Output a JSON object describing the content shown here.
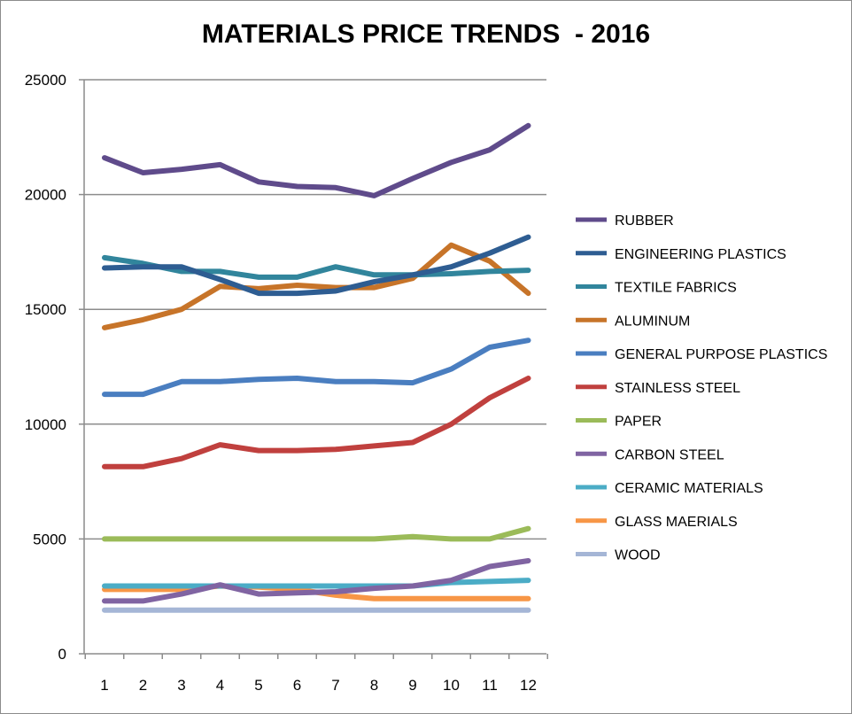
{
  "chart_data": {
    "type": "line",
    "title": "MATERIALS PRICE TRENDS  - 2016",
    "xlabel": "",
    "ylabel": "",
    "x": [
      1,
      2,
      3,
      4,
      5,
      6,
      7,
      8,
      9,
      10,
      11,
      12
    ],
    "x_tick_labels": [
      "1",
      "2",
      "3",
      "4",
      "5",
      "6",
      "7",
      "8",
      "9",
      "10",
      "11",
      "12"
    ],
    "y_tick_labels": [
      "0",
      "5000",
      "10000",
      "15000",
      "20000",
      "25000"
    ],
    "ylim": [
      0,
      25000
    ],
    "grid": "horizontal",
    "legend_position": "right",
    "series": [
      {
        "name": "RUBBER",
        "color": "#5f4b8b",
        "values": [
          21600,
          20950,
          21100,
          21300,
          20550,
          20350,
          20300,
          19950,
          20700,
          21400,
          21950,
          23000
        ]
      },
      {
        "name": "ENGINEERING PLASTICS",
        "color": "#2e5d92",
        "values": [
          16800,
          16850,
          16850,
          16300,
          15700,
          15700,
          15800,
          16200,
          16500,
          16850,
          17450,
          18150
        ]
      },
      {
        "name": "TEXTILE FABRICS",
        "color": "#31859c",
        "values": [
          17250,
          17000,
          16650,
          16650,
          16400,
          16400,
          16850,
          16500,
          16500,
          16550,
          16650,
          16700
        ]
      },
      {
        "name": "ALUMINUM",
        "color": "#c77429",
        "values": [
          14200,
          14550,
          15000,
          16000,
          15900,
          16050,
          15950,
          15950,
          16350,
          17800,
          17100,
          15700
        ]
      },
      {
        "name": "GENERAL PURPOSE PLASTICS",
        "color": "#4a7ec0",
        "values": [
          11300,
          11300,
          11850,
          11850,
          11950,
          12000,
          11850,
          11850,
          11800,
          12400,
          13350,
          13650
        ]
      },
      {
        "name": "STAINLESS STEEL",
        "color": "#c0403e",
        "values": [
          8150,
          8150,
          8500,
          9100,
          8850,
          8850,
          8900,
          9050,
          9200,
          10000,
          11150,
          12000
        ]
      },
      {
        "name": "PAPER",
        "color": "#9bbb59",
        "values": [
          5000,
          5000,
          5000,
          5000,
          5000,
          5000,
          5000,
          5000,
          5100,
          5000,
          5000,
          5450
        ]
      },
      {
        "name": "CARBON STEEL",
        "color": "#8064a2",
        "values": [
          2300,
          2300,
          2600,
          3000,
          2600,
          2650,
          2700,
          2850,
          2950,
          3200,
          3800,
          4050
        ]
      },
      {
        "name": "CERAMIC MATERIALS",
        "color": "#4bacc6",
        "values": [
          2950,
          2950,
          2950,
          2950,
          2950,
          2950,
          2950,
          2950,
          2950,
          3100,
          3150,
          3200
        ]
      },
      {
        "name": "GLASS MAERIALS",
        "color": "#f79646",
        "values": [
          2800,
          2800,
          2800,
          2950,
          2900,
          2800,
          2550,
          2400,
          2400,
          2400,
          2400,
          2400
        ]
      },
      {
        "name": "WOOD",
        "color": "#a5b6d6",
        "values": [
          1900,
          1900,
          1900,
          1900,
          1900,
          1900,
          1900,
          1900,
          1900,
          1900,
          1900,
          1900
        ]
      }
    ]
  }
}
